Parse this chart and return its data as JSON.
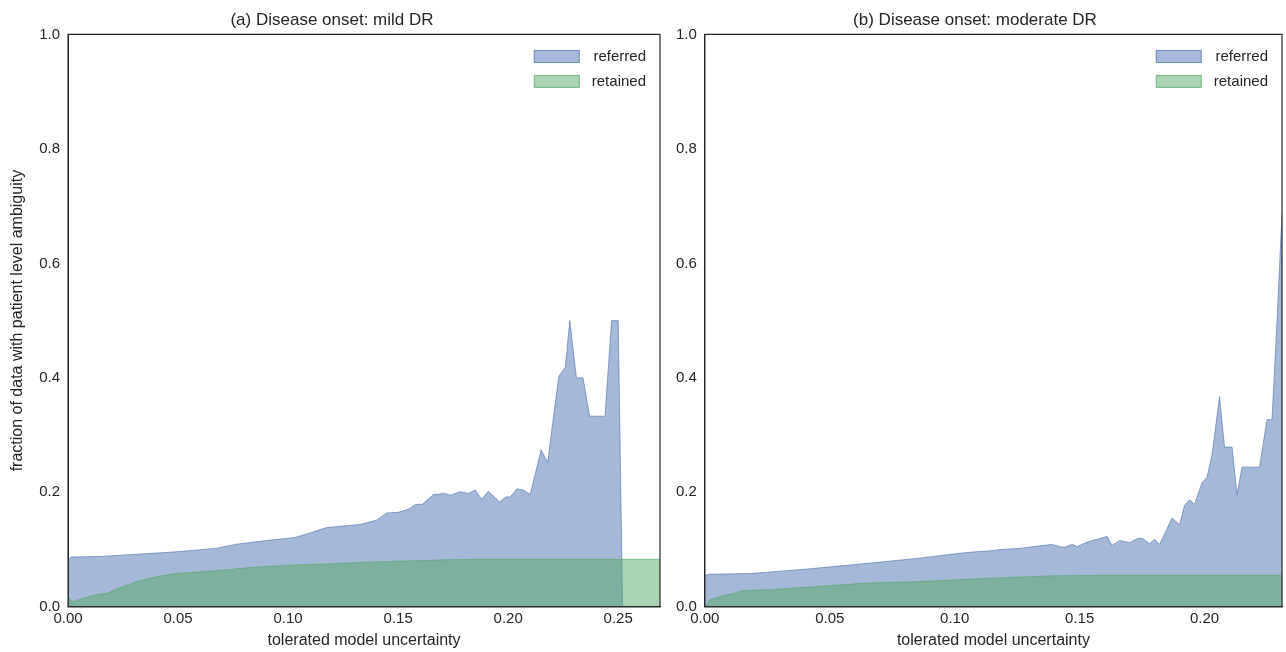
{
  "chart_data": [
    {
      "type": "area",
      "title": "(a) Disease onset: mild DR",
      "xlabel": "tolerated model uncertainty",
      "ylabel": "fraction of data with patient level ambiguity",
      "legend": "top right",
      "grid": false,
      "xlim": [
        0,
        0.269
      ],
      "ylim": [
        0,
        1.0
      ],
      "xticks": [
        {
          "value": 0,
          "label": "0.00"
        },
        {
          "value": 0.05,
          "label": "0.05"
        },
        {
          "value": 0.1,
          "label": "0.10"
        },
        {
          "value": 0.15,
          "label": "0.15"
        },
        {
          "value": 0.2,
          "label": "0.20"
        },
        {
          "value": 0.25,
          "label": "0.25"
        }
      ],
      "yticks": [
        {
          "value": 0,
          "label": "0.0"
        },
        {
          "value": 0.2,
          "label": "0.2"
        },
        {
          "value": 0.4,
          "label": "0.4"
        },
        {
          "value": 0.6,
          "label": "0.6"
        },
        {
          "value": 0.8,
          "label": "0.8"
        },
        {
          "value": 1,
          "label": "1.0"
        }
      ],
      "series": [
        {
          "name": "referred",
          "color": "#4c72b0",
          "x": [
            0,
            0.0017,
            0.0148,
            0.049,
            0.067,
            0.076,
            0.093,
            0.103,
            0.11,
            0.117,
            0.122,
            0.133,
            0.14,
            0.145,
            0.15,
            0.155,
            0.158,
            0.161,
            0.166,
            0.171,
            0.174,
            0.178,
            0.182,
            0.185,
            0.188,
            0.191,
            0.194,
            0.196,
            0.199,
            0.201,
            0.204,
            0.207,
            0.21,
            0.212,
            0.215,
            0.218,
            0.22,
            0.223,
            0.226,
            0.228,
            0.231,
            0.234,
            0.237,
            0.244,
            0.247,
            0.25,
            0.252
          ],
          "values": [
            0.083,
            0.087,
            0.088,
            0.096,
            0.102,
            0.109,
            0.117,
            0.121,
            0.129,
            0.138,
            0.14,
            0.144,
            0.151,
            0.164,
            0.165,
            0.171,
            0.179,
            0.179,
            0.196,
            0.198,
            0.195,
            0.201,
            0.198,
            0.204,
            0.188,
            0.202,
            0.191,
            0.183,
            0.192,
            0.192,
            0.206,
            0.204,
            0.196,
            0.227,
            0.274,
            0.252,
            0.314,
            0.402,
            0.419,
            0.5,
            0.4,
            0.4,
            0.333,
            0.333,
            0.5,
            0.5,
            0
          ]
        },
        {
          "name": "retained",
          "color": "#55a868",
          "x": [
            0,
            0.002,
            0.008,
            0.013,
            0.018,
            0.022,
            0.032,
            0.041,
            0.049,
            0.067,
            0.084,
            0.102,
            0.119,
            0.136,
            0.154,
            0.171,
            0.188,
            0.269
          ],
          "values": [
            0.018,
            0.009,
            0.016,
            0.021,
            0.024,
            0.031,
            0.045,
            0.053,
            0.058,
            0.063,
            0.069,
            0.073,
            0.075,
            0.078,
            0.08,
            0.082,
            0.083,
            0.083
          ]
        }
      ]
    },
    {
      "type": "area",
      "title": "(b) Disease onset: moderate DR",
      "xlabel": "tolerated model uncertainty",
      "legend": "top right",
      "grid": false,
      "xlim": [
        0,
        0.231
      ],
      "ylim": [
        0,
        1.0
      ],
      "xticks": [
        {
          "value": 0,
          "label": "0.00"
        },
        {
          "value": 0.05,
          "label": "0.05"
        },
        {
          "value": 0.1,
          "label": "0.10"
        },
        {
          "value": 0.15,
          "label": "0.15"
        },
        {
          "value": 0.2,
          "label": "0.20"
        }
      ],
      "yticks": [
        {
          "value": 0,
          "label": "0.0"
        },
        {
          "value": 0.2,
          "label": "0.2"
        },
        {
          "value": 0.4,
          "label": "0.4"
        },
        {
          "value": 0.6,
          "label": "0.6"
        },
        {
          "value": 0.8,
          "label": "0.8"
        },
        {
          "value": 1,
          "label": "1.0"
        }
      ],
      "series": [
        {
          "name": "referred",
          "color": "#4c72b0",
          "x": [
            0,
            0.002,
            0.018,
            0.041,
            0.063,
            0.086,
            0.101,
            0.108,
            0.115,
            0.118,
            0.126,
            0.135,
            0.139,
            0.142,
            0.144,
            0.147,
            0.149,
            0.153,
            0.157,
            0.161,
            0.163,
            0.166,
            0.17,
            0.173,
            0.175,
            0.178,
            0.18,
            0.182,
            0.187,
            0.19,
            0.192,
            0.194,
            0.196,
            0.199,
            0.201,
            0.203,
            0.206,
            0.208,
            0.211,
            0.213,
            0.215,
            0.222,
            0.225,
            0.227,
            0.229,
            0.231
          ],
          "values": [
            0.055,
            0.057,
            0.058,
            0.066,
            0.075,
            0.085,
            0.093,
            0.096,
            0.098,
            0.1,
            0.102,
            0.107,
            0.109,
            0.105,
            0.104,
            0.109,
            0.105,
            0.113,
            0.118,
            0.123,
            0.107,
            0.116,
            0.112,
            0.119,
            0.12,
            0.11,
            0.118,
            0.109,
            0.155,
            0.143,
            0.177,
            0.187,
            0.179,
            0.217,
            0.226,
            0.266,
            0.367,
            0.279,
            0.279,
            0.196,
            0.244,
            0.244,
            0.327,
            0.327,
            0.499,
            0.688
          ]
        },
        {
          "name": "retained",
          "color": "#55a868",
          "x": [
            0,
            0.002,
            0.006,
            0.011,
            0.015,
            0.026,
            0.041,
            0.063,
            0.086,
            0.115,
            0.138,
            0.16,
            0.231
          ],
          "values": [
            0,
            0.012,
            0.018,
            0.023,
            0.028,
            0.03,
            0.034,
            0.041,
            0.044,
            0.05,
            0.054,
            0.055,
            0.055
          ]
        }
      ]
    }
  ]
}
